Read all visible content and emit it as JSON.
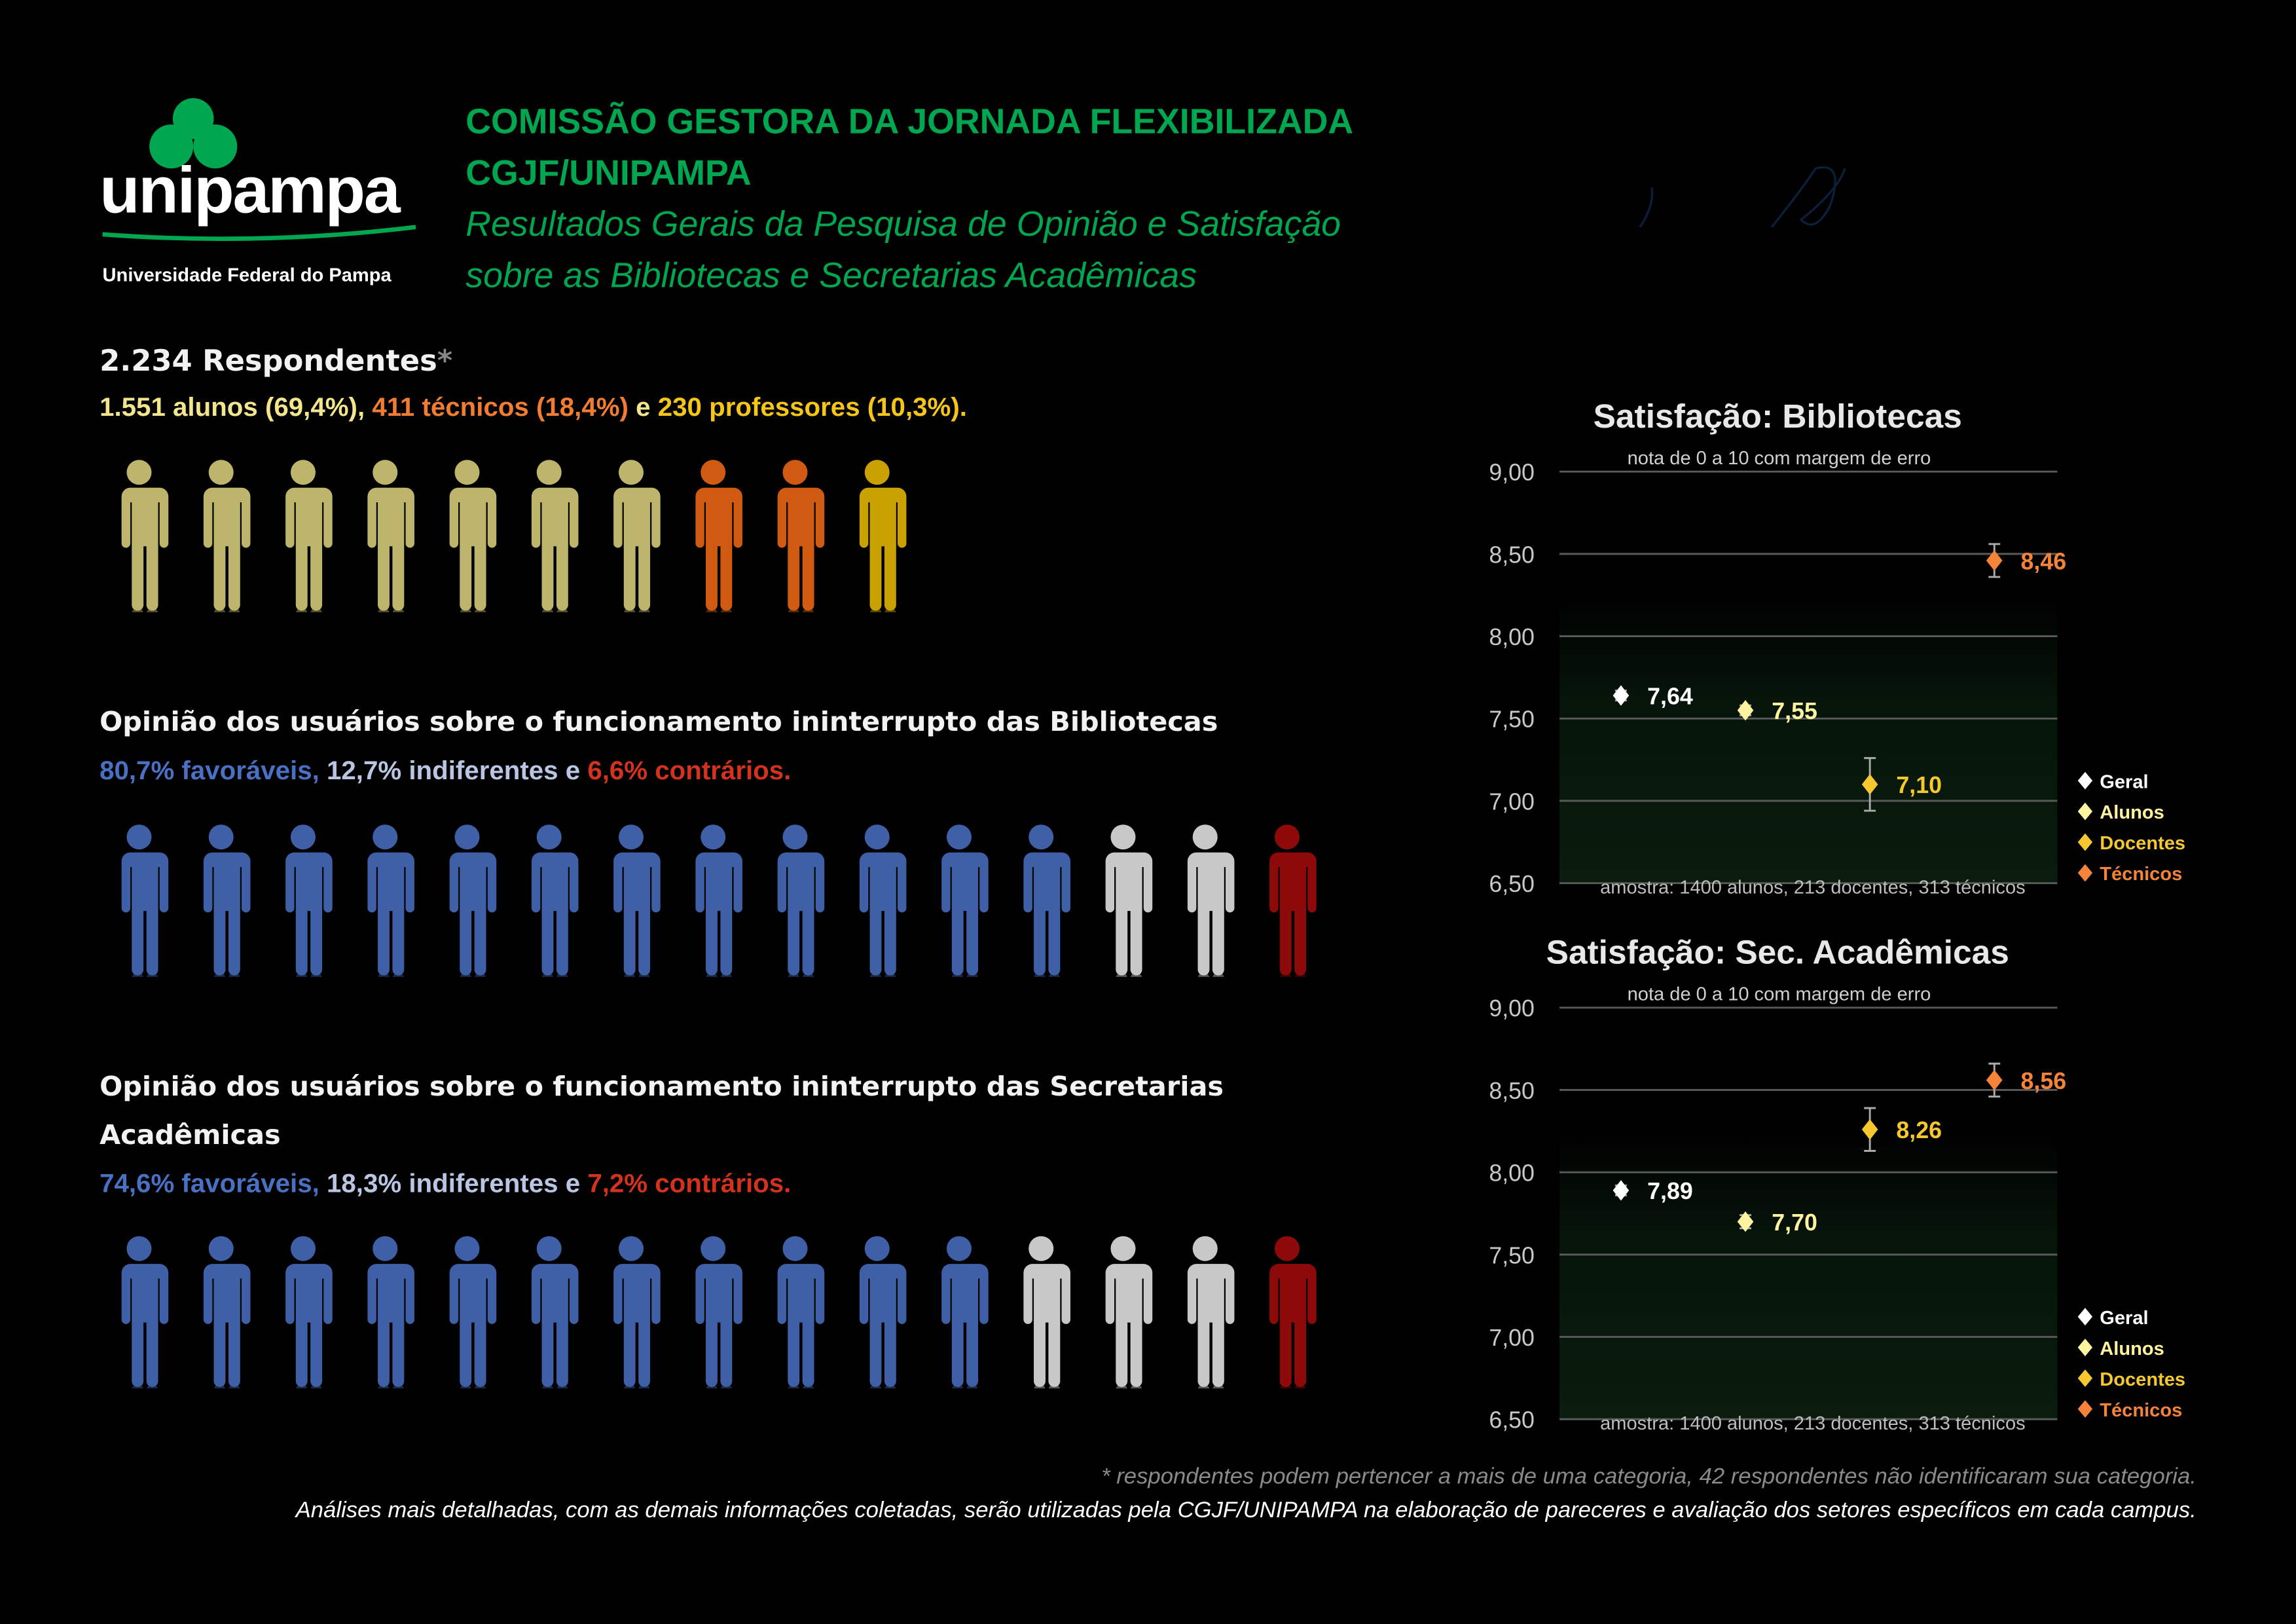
{
  "logo": {
    "wordmark": "unipampa",
    "subtitle": "Universidade Federal do Pampa",
    "color": "#00a650"
  },
  "header": {
    "title1": "COMISSÃO GESTORA DA JORNADA FLEXIBILIZADA",
    "title2": "CGJF/UNIPAMPA",
    "subtitle1": "Resultados Gerais da Pesquisa de Opinião e Satisfação",
    "subtitle2": "sobre as Bibliotecas e Secretarias Acadêmicas"
  },
  "respondents": {
    "title": "2.234 Respondentes",
    "asterisk": "*",
    "alunos": "1.551 alunos (69,4%)",
    "sep1": ", ",
    "tecnicos": "411 técnicos (18,4%)",
    "sep2": " e ",
    "professores": "230 professores (10,3%).",
    "pictogram": [
      {
        "group": "alunos",
        "count": 7,
        "color": "#bdb56c"
      },
      {
        "group": "técnicos",
        "count": 2,
        "color": "#d05a12"
      },
      {
        "group": "professores",
        "count": 1,
        "color": "#c9a100"
      }
    ]
  },
  "bibliotecas_opinion": {
    "title": "Opinião dos usuários sobre o funcionamento ininterrupto das Bibliotecas",
    "favoraveis": "80,7% favoráveis,",
    "indiferentes": " 12,7% indiferentes",
    "e": " e ",
    "contrarios": "6,6% contrários.",
    "pictogram": [
      {
        "group": "favoráveis",
        "count": 12,
        "color": "#3f5fa6"
      },
      {
        "group": "indiferentes",
        "count": 2,
        "color": "#c8c8c8"
      },
      {
        "group": "contrários",
        "count": 1,
        "color": "#8e0a0a"
      }
    ]
  },
  "secretarias_opinion": {
    "title1": "Opinião dos usuários sobre o funcionamento ininterrupto das Secretarias",
    "title2": "Acadêmicas",
    "favoraveis": "74,6% favoráveis,",
    "indiferentes": " 18,3% indiferentes",
    "e": " e ",
    "contrarios": "7,2% contrários.",
    "pictogram": [
      {
        "group": "favoráveis",
        "count": 11,
        "color": "#3f5fa6"
      },
      {
        "group": "indiferentes",
        "count": 3,
        "color": "#c8c8c8"
      },
      {
        "group": "contrários",
        "count": 1,
        "color": "#8e0a0a"
      }
    ]
  },
  "colors": {
    "favoraveis": "#4a70c4",
    "indiferentes": "#b9c5e2",
    "contrarios": "#d2321e",
    "alunos": "#f2e58c",
    "tecnicos": "#f27c30",
    "professores": "#f5c518"
  },
  "chart_data": [
    {
      "type": "scatter",
      "title": "Satisfação: Bibliotecas",
      "subtitle": "nota de 0 a 10 com margem de erro",
      "note": "amostra: 1400 alunos, 213 docentes, 313 técnicos",
      "ylim": [
        6.5,
        9.0
      ],
      "yticks": [
        "9,00",
        "8,50",
        "8,00",
        "7,50",
        "7,00",
        "6,50"
      ],
      "grid": true,
      "legend_position": "right",
      "series": [
        {
          "name": "Geral",
          "value": 7.64,
          "label": "7,64",
          "error": 0.03,
          "color": "#ffffff"
        },
        {
          "name": "Alunos",
          "value": 7.55,
          "label": "7,55",
          "error": 0.03,
          "color": "#fff3a0"
        },
        {
          "name": "Docentes",
          "value": 7.1,
          "label": "7,10",
          "error": 0.16,
          "color": "#f5c830"
        },
        {
          "name": "Técnicos",
          "value": 8.46,
          "label": "8,46",
          "error": 0.1,
          "color": "#f5843a"
        }
      ]
    },
    {
      "type": "scatter",
      "title": "Satisfação: Sec. Acadêmicas",
      "subtitle": "nota de 0 a 10 com margem de erro",
      "note": "amostra: 1400 alunos, 213 docentes, 313 técnicos",
      "ylim": [
        6.5,
        9.0
      ],
      "yticks": [
        "9,00",
        "8,50",
        "8,00",
        "7,50",
        "7,00",
        "6,50"
      ],
      "grid": true,
      "legend_position": "right",
      "series": [
        {
          "name": "Geral",
          "value": 7.89,
          "label": "7,89",
          "error": 0.03,
          "color": "#ffffff"
        },
        {
          "name": "Alunos",
          "value": 7.7,
          "label": "7,70",
          "error": 0.04,
          "color": "#fff3a0"
        },
        {
          "name": "Docentes",
          "value": 8.26,
          "label": "8,26",
          "error": 0.13,
          "color": "#f5c830"
        },
        {
          "name": "Técnicos",
          "value": 8.56,
          "label": "8,56",
          "error": 0.1,
          "color": "#f5843a"
        }
      ]
    }
  ],
  "footer": {
    "note1": "* respondentes podem pertencer a mais de uma categoria, 42 respondentes não identificaram sua categoria.",
    "note2": "Análises mais detalhadas, com as demais informações coletadas, serão utilizadas pela CGJF/UNIPAMPA na elaboração de pareceres e avaliação dos setores específicos em cada campus."
  }
}
